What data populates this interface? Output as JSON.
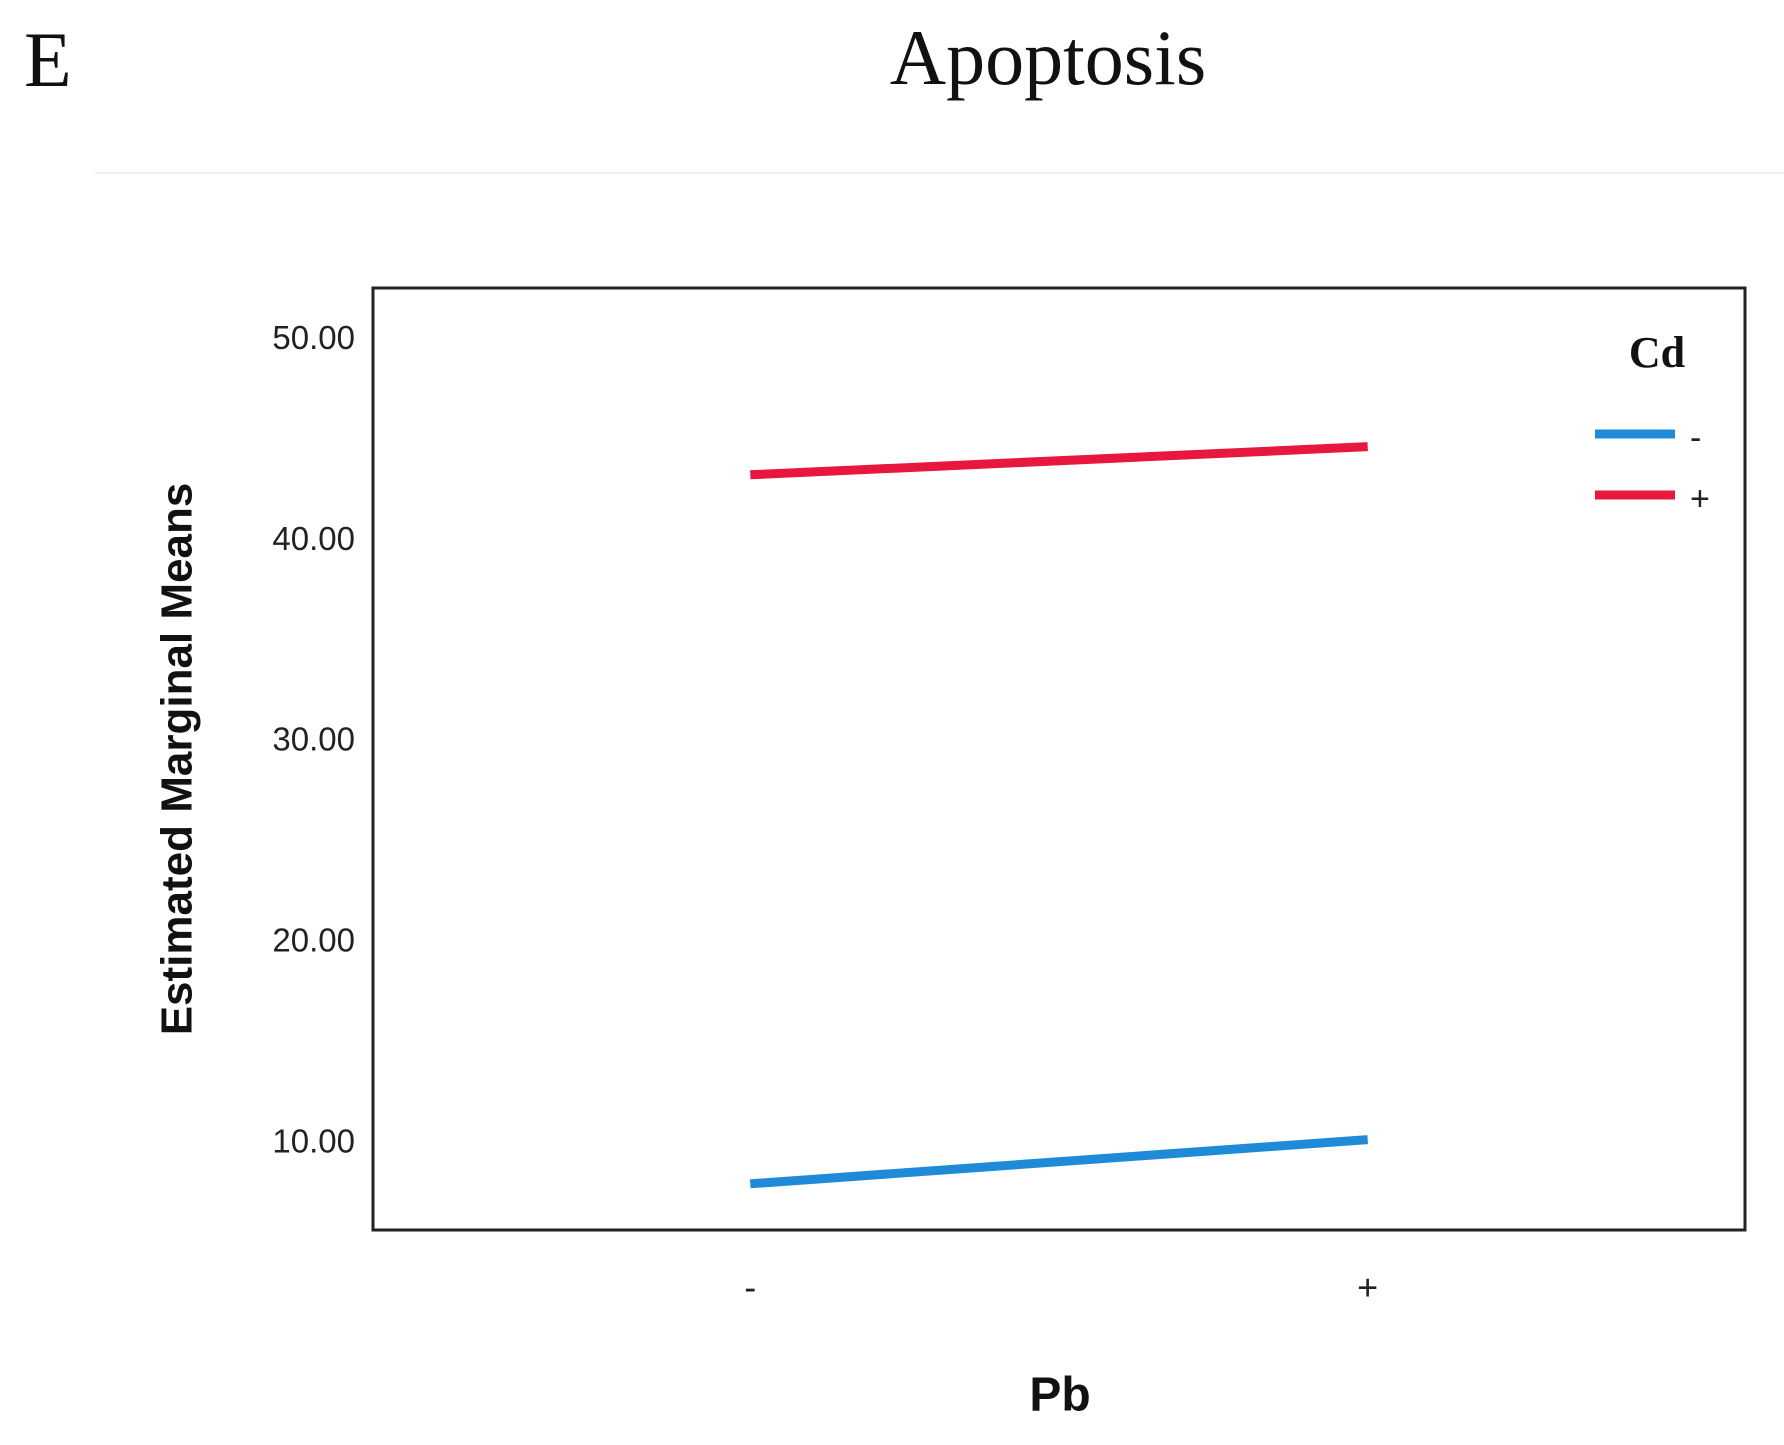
{
  "panel_label": "E",
  "chart_data": {
    "type": "line",
    "title": "Apoptosis",
    "x_label": "Pb",
    "y_label": "Estimated Marginal Means",
    "legend_title": "Cd",
    "legend": "upper-right",
    "categories": [
      "-",
      "+"
    ],
    "series": [
      {
        "name": "-",
        "color": "#1f8ad8",
        "values": [
          8.0,
          10.2
        ]
      },
      {
        "name": "+",
        "color": "#e8173e",
        "values": [
          43.3,
          44.7
        ]
      }
    ],
    "ylim": [
      5.7,
      52.6
    ],
    "yticks": [
      {
        "value": 10,
        "label": "10.00"
      },
      {
        "value": 20,
        "label": "20.00"
      },
      {
        "value": 30,
        "label": "30.00"
      },
      {
        "value": 40,
        "label": "40.00"
      },
      {
        "value": 50,
        "label": "50.00"
      }
    ],
    "grid": false
  }
}
